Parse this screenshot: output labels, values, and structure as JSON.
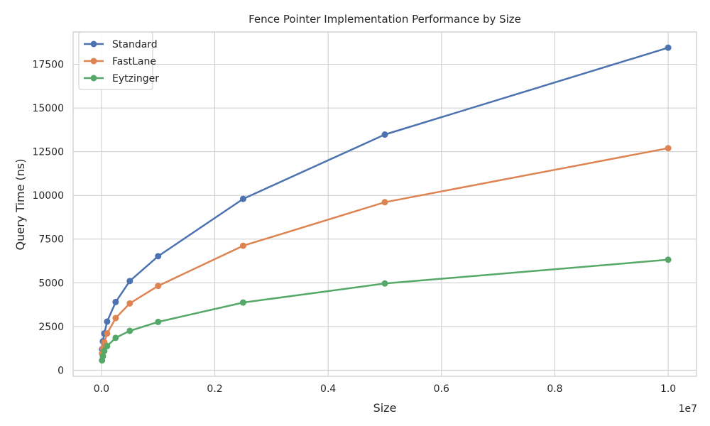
{
  "chart_data": {
    "type": "line",
    "title": "Fence Pointer Implementation Performance by Size",
    "xlabel": "Size",
    "ylabel": "Query Time (ns)",
    "x_offset_label": "1e7",
    "xlim": [
      -500000,
      10500000
    ],
    "ylim": [
      -350,
      19350
    ],
    "x_ticks": [
      0,
      2000000,
      4000000,
      6000000,
      8000000,
      10000000
    ],
    "x_tick_labels": [
      "0.0",
      "0.2",
      "0.4",
      "0.6",
      "0.8",
      "1.0"
    ],
    "y_ticks": [
      0,
      2500,
      5000,
      7500,
      10000,
      12500,
      15000,
      17500
    ],
    "y_tick_labels": [
      "0",
      "2500",
      "5000",
      "7500",
      "10000",
      "12500",
      "15000",
      "17500"
    ],
    "grid": true,
    "legend_position": "top-left",
    "x": [
      10000,
      25000,
      50000,
      100000,
      250000,
      500000,
      1000000,
      2500000,
      5000000,
      10000000
    ],
    "series": [
      {
        "name": "Standard",
        "color": "#4c72b0",
        "values": [
          1200,
          1650,
          2100,
          2780,
          3900,
          5100,
          6520,
          9800,
          13480,
          18450
        ]
      },
      {
        "name": "FastLane",
        "color": "#dd8452",
        "values": [
          950,
          1250,
          1600,
          2100,
          2980,
          3820,
          4820,
          7120,
          9610,
          12700
        ]
      },
      {
        "name": "Eytzinger",
        "color": "#55a868",
        "values": [
          560,
          800,
          1100,
          1380,
          1850,
          2250,
          2760,
          3870,
          4960,
          6320
        ]
      }
    ]
  }
}
